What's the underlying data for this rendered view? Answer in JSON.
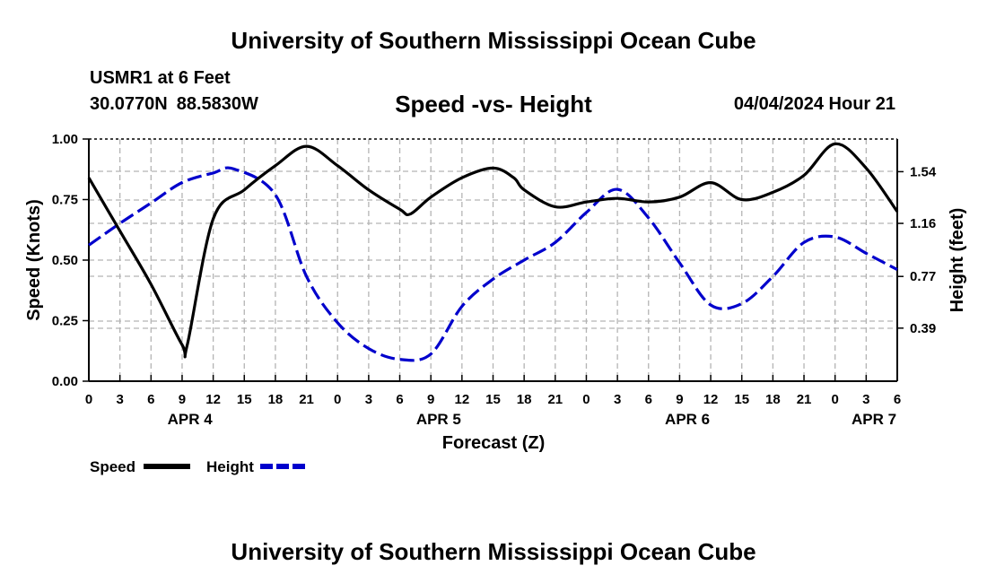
{
  "header": {
    "title": "University of Southern Mississippi Ocean Cube",
    "station": "USMR1 at 6 Feet",
    "lat": "30.0770N",
    "lon": "88.5830W",
    "subtitle": "Speed -vs- Height",
    "datetime": "04/04/2024 Hour 21"
  },
  "footer": {
    "title": "University of Southern Mississippi Ocean Cube"
  },
  "chart_data": {
    "type": "line",
    "title": "Speed -vs- Height",
    "xlabel": "Forecast (Z)",
    "ylabel": "Speed (Knots)",
    "y2label": "Height (feet)",
    "xlim": [
      0,
      78
    ],
    "ylim": [
      0,
      1
    ],
    "y2lim": [
      0,
      1.78
    ],
    "grid": true,
    "legend_position": "bottom-left",
    "x_ticks": [
      0,
      3,
      6,
      9,
      12,
      15,
      18,
      21,
      24,
      27,
      30,
      33,
      36,
      39,
      42,
      45,
      48,
      51,
      54,
      57,
      60,
      63,
      66,
      69,
      72,
      75,
      78
    ],
    "x_tick_labels": [
      "0",
      "3",
      "6",
      "9",
      "12",
      "15",
      "18",
      "21",
      "0",
      "3",
      "6",
      "9",
      "12",
      "15",
      "18",
      "21",
      "0",
      "3",
      "6",
      "9",
      "12",
      "15",
      "18",
      "21",
      "0",
      "3",
      "6"
    ],
    "y_ticks": [
      0,
      0.25,
      0.5,
      0.75,
      1.0
    ],
    "y_tick_labels": [
      "0.00",
      "0.25",
      "0.50",
      "0.75",
      "1.00"
    ],
    "y2_ticks": [
      0.39,
      0.77,
      1.16,
      1.54
    ],
    "y2_tick_labels": [
      "0.39",
      "0.77",
      "1.16",
      "1.54"
    ],
    "day_labels": [
      {
        "label": "APR 4",
        "x": 9.75
      },
      {
        "label": "APR 5",
        "x": 33.75
      },
      {
        "label": "APR 6",
        "x": 57.75
      },
      {
        "label": "APR 7",
        "x": 75.75
      }
    ],
    "series": [
      {
        "name": "Speed",
        "axis": "left",
        "color": "#000000",
        "dash": "solid",
        "x": [
          0,
          3,
          6,
          9,
          9.5,
          12,
          15,
          18,
          21,
          24,
          27,
          30,
          31,
          33,
          36,
          39,
          41,
          42,
          45,
          48,
          51,
          54,
          57,
          60,
          63,
          66,
          69,
          72,
          75,
          78
        ],
        "values": [
          0.84,
          0.62,
          0.4,
          0.15,
          0.15,
          0.67,
          0.79,
          0.89,
          0.97,
          0.89,
          0.79,
          0.71,
          0.69,
          0.76,
          0.84,
          0.88,
          0.84,
          0.79,
          0.72,
          0.74,
          0.755,
          0.74,
          0.76,
          0.82,
          0.75,
          0.78,
          0.85,
          0.98,
          0.88,
          0.7
        ]
      },
      {
        "name": "Height",
        "axis": "right",
        "color": "#0000cc",
        "dash": "dashed",
        "x": [
          0,
          3,
          6,
          9,
          12,
          14,
          18,
          21,
          24,
          27,
          30,
          33,
          36,
          39,
          42,
          45,
          48,
          51,
          54,
          57,
          60,
          63,
          66,
          69,
          72,
          75,
          78
        ],
        "values": [
          1.0,
          1.16,
          1.31,
          1.46,
          1.53,
          1.56,
          1.37,
          0.77,
          0.43,
          0.24,
          0.16,
          0.2,
          0.55,
          0.75,
          0.89,
          1.02,
          1.24,
          1.41,
          1.2,
          0.87,
          0.56,
          0.57,
          0.77,
          1.02,
          1.06,
          0.94,
          0.82
        ]
      }
    ]
  }
}
